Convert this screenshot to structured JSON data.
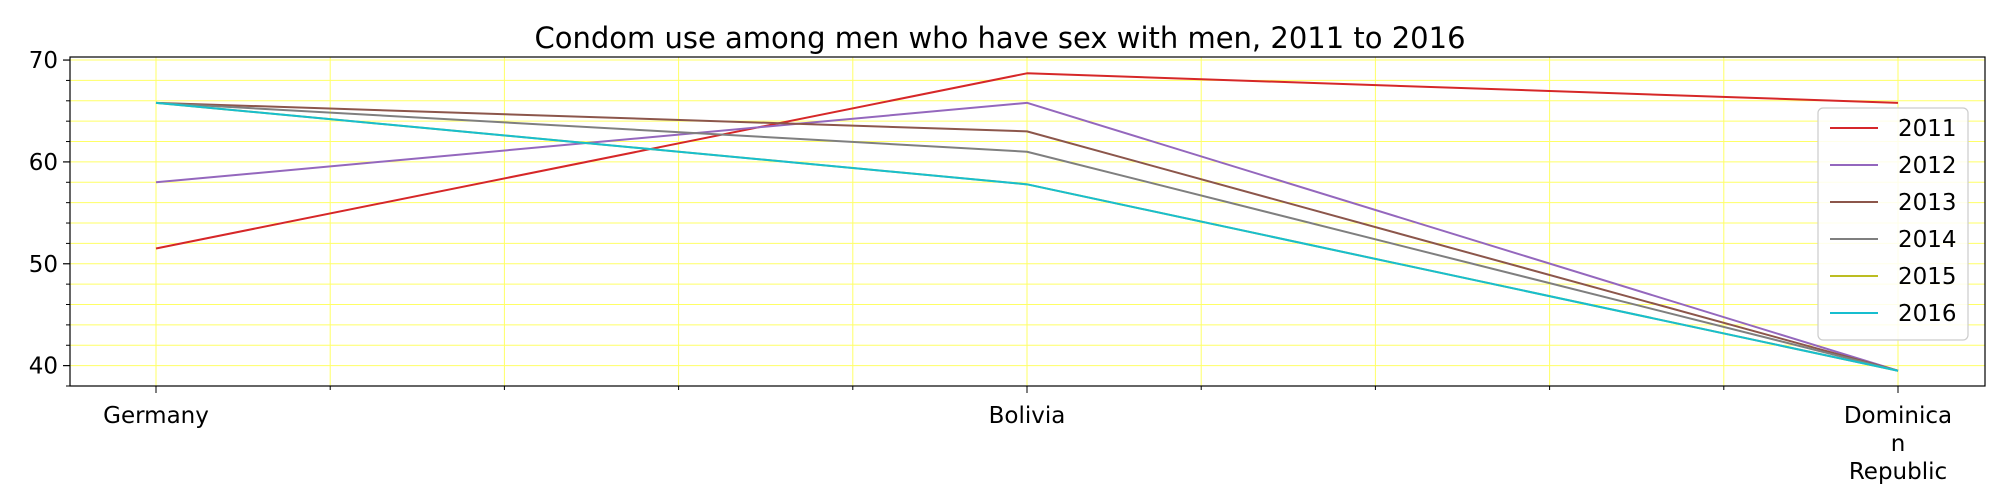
{
  "chart_data": {
    "type": "line",
    "title": "Condom use among men who have sex with men, 2011 to 2016",
    "xlabel": "",
    "ylabel": "",
    "categories": [
      "Germany",
      "Bolivia",
      "Dominican Republic"
    ],
    "category_label_lines": [
      [
        "Germany"
      ],
      [
        "Bolivia"
      ],
      [
        "Dominica",
        "n",
        "Republic"
      ]
    ],
    "ylim": [
      38,
      70.3
    ],
    "yticks": [
      40,
      50,
      60,
      70
    ],
    "grid": true,
    "grid_color": "#ffff66",
    "legend_position": "right",
    "series": [
      {
        "name": "2011",
        "color": "#d62728",
        "values": [
          51.5,
          68.7,
          65.8
        ]
      },
      {
        "name": "2012",
        "color": "#9467bd",
        "values": [
          58.0,
          65.8,
          39.5
        ]
      },
      {
        "name": "2013",
        "color": "#8c564b",
        "values": [
          65.8,
          63.0,
          39.5
        ]
      },
      {
        "name": "2014",
        "color": "#7f7f7f",
        "values": [
          65.8,
          61.0,
          39.5
        ]
      },
      {
        "name": "2015",
        "color": "#bcbd22",
        "values": [
          65.8,
          57.8,
          39.5
        ]
      },
      {
        "name": "2016",
        "color": "#17becf",
        "values": [
          65.8,
          57.8,
          39.5
        ]
      }
    ]
  }
}
